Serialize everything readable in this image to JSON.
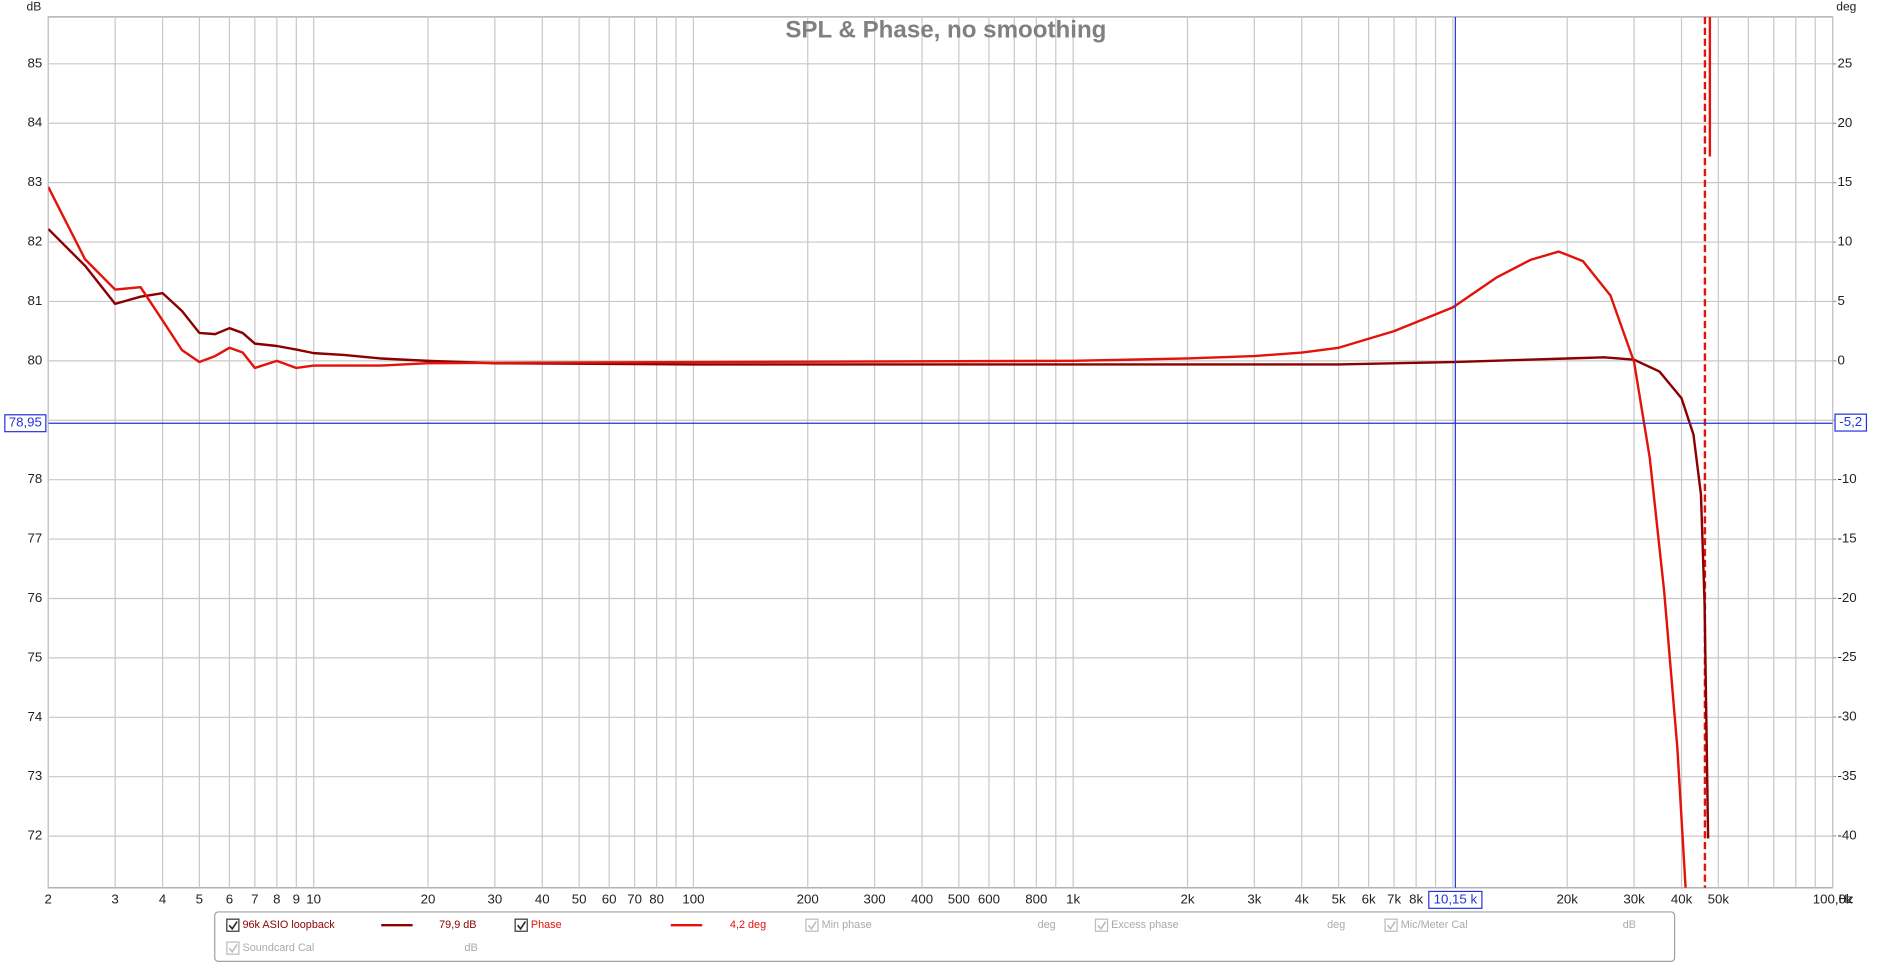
{
  "chart_data": {
    "type": "line",
    "title": "SPL & Phase, no smoothing",
    "y_unit": "dB",
    "y2_unit": "deg",
    "x_unit": "Hz",
    "log_x": true,
    "xlim": [
      2,
      100000
    ],
    "ylim": [
      71.13,
      85.79
    ],
    "y2lim": [
      -44.37,
      28.96
    ],
    "xticks": [
      2,
      3,
      4,
      5,
      6,
      7,
      8,
      9,
      10,
      20,
      30,
      40,
      50,
      60,
      70,
      80,
      100,
      200,
      300,
      400,
      500,
      600,
      800,
      {
        "value": 1000,
        "label": "1k"
      },
      {
        "value": 2000,
        "label": "2k"
      },
      {
        "value": 3000,
        "label": "3k"
      },
      {
        "value": 4000,
        "label": "4k"
      },
      {
        "value": 5000,
        "label": "5k"
      },
      {
        "value": 6000,
        "label": "6k"
      },
      {
        "value": 7000,
        "label": "7k"
      },
      {
        "value": 8000,
        "label": "8k"
      },
      {
        "value": 20000,
        "label": "20k"
      },
      {
        "value": 30000,
        "label": "30k"
      },
      {
        "value": 40000,
        "label": "40k"
      },
      {
        "value": 50000,
        "label": "50k"
      },
      {
        "value": 100000,
        "label": "100,0k"
      }
    ],
    "x_minor_grid": [
      90,
      700,
      900,
      9000,
      10000,
      60000,
      70000,
      80000,
      90000
    ],
    "yticks": [
      72,
      73,
      74,
      75,
      76,
      77,
      78,
      79,
      80,
      81,
      82,
      83,
      84,
      85
    ],
    "y2ticks": [
      -40,
      -35,
      -30,
      -25,
      -20,
      -15,
      -10,
      -5,
      0,
      5,
      10,
      15,
      20,
      25
    ],
    "grid": true,
    "series": [
      {
        "name": "96k ASIO loopback",
        "color": "#8b0000",
        "readout": "79,9 dB",
        "x": [
          2,
          2.5,
          3,
          3.5,
          4,
          4.5,
          5,
          5.5,
          6,
          6.5,
          7,
          8,
          9,
          10,
          12,
          15,
          20,
          30,
          100,
          1000,
          5000,
          10000,
          20000,
          25000,
          30000,
          35000,
          40000,
          43000,
          45000,
          46000,
          47000
        ],
        "values": [
          82.22,
          81.6,
          80.96,
          81.08,
          81.14,
          80.84,
          80.47,
          80.45,
          80.55,
          80.47,
          80.29,
          80.25,
          80.19,
          80.13,
          80.1,
          80.04,
          80.0,
          79.96,
          79.94,
          79.94,
          79.94,
          79.98,
          80.04,
          80.06,
          80.02,
          79.82,
          79.37,
          78.76,
          77.75,
          75.92,
          71.96
        ]
      },
      {
        "name": "Phase",
        "color": "#e3120b",
        "readout": "4,2 deg",
        "axis": "y2",
        "x": [
          2,
          2.5,
          3,
          3.5,
          4,
          4.5,
          5,
          5.5,
          6,
          6.5,
          7,
          8,
          9,
          10,
          15,
          20,
          100,
          1000,
          2000,
          3000,
          4000,
          5000,
          7000,
          10000,
          13000,
          16000,
          19000,
          22000,
          26000,
          30000,
          33000,
          36000,
          39000,
          41000,
          45000,
          47500,
          47500
        ],
        "values": [
          14.64,
          8.55,
          6.0,
          6.2,
          3.4,
          0.9,
          -0.1,
          0.4,
          1.1,
          0.7,
          -0.6,
          0,
          -0.6,
          -0.4,
          -0.4,
          -0.2,
          -0.1,
          0,
          0.2,
          0.4,
          0.7,
          1.1,
          2.5,
          4.5,
          7.0,
          8.5,
          9.2,
          8.4,
          5.5,
          -0.1,
          -8.2,
          -19.4,
          -32.6,
          -44.37,
          null,
          28.96,
          17.2
        ]
      }
    ],
    "cursor": {
      "x": {
        "value": 10150,
        "label": "10,15 k"
      },
      "y": {
        "value": 78.95,
        "label": "78,95"
      },
      "y2": {
        "value": -5.2,
        "label": "-5,2"
      },
      "color": "#2233dd"
    },
    "limit_line_x": 46100,
    "inactive_entries": [
      {
        "name": "Min phase",
        "unit": "deg"
      },
      {
        "name": "Excess phase",
        "unit": "deg"
      },
      {
        "name": "Mic/Meter Cal",
        "unit": "dB"
      },
      {
        "name": "Soundcard Cal",
        "unit": "dB"
      }
    ]
  }
}
